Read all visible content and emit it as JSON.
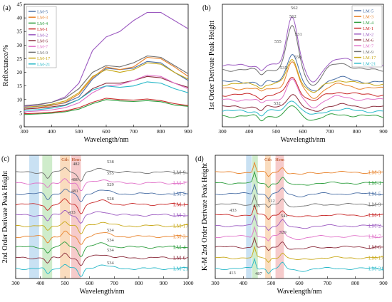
{
  "chart_data": [
    {
      "type": "line",
      "panel": "(a)",
      "xlabel": "Wavelength/nm",
      "ylabel": "Reflectance/%",
      "xlim": [
        300,
        900
      ],
      "ylim": [
        0,
        45
      ],
      "xticks": [
        300,
        400,
        500,
        600,
        700,
        800,
        900
      ],
      "yticks": [
        0,
        5,
        10,
        15,
        20,
        25,
        30,
        35,
        40,
        45
      ],
      "legend_position": "top-left",
      "grid": false,
      "x": [
        300,
        350,
        400,
        450,
        500,
        550,
        600,
        650,
        700,
        750,
        800,
        850,
        900
      ],
      "series": [
        {
          "name": "LM-5",
          "color": "#4a6fa5",
          "values": [
            7.0,
            7.5,
            8.0,
            8.8,
            11.0,
            17.5,
            21.5,
            21.0,
            21.5,
            24.0,
            23.5,
            20.0,
            17.0
          ]
        },
        {
          "name": "LM-3",
          "color": "#e8822a",
          "values": [
            6.5,
            7.0,
            7.8,
            9.0,
            12.0,
            18.0,
            22.0,
            21.0,
            22.0,
            25.5,
            25.0,
            22.0,
            18.5
          ]
        },
        {
          "name": "LM-4",
          "color": "#2e9e3e",
          "values": [
            4.5,
            4.7,
            5.0,
            5.5,
            6.5,
            8.5,
            10.0,
            9.5,
            9.3,
            9.6,
            9.2,
            8.0,
            7.5
          ]
        },
        {
          "name": "LM-1",
          "color": "#c82828",
          "values": [
            4.8,
            5.0,
            5.3,
            5.8,
            7.0,
            9.0,
            10.5,
            10.0,
            9.8,
            10.2,
            9.6,
            8.5,
            7.8
          ]
        },
        {
          "name": "LM-2",
          "color": "#9b59c0",
          "values": [
            7.5,
            8.0,
            9.0,
            11.0,
            16.0,
            28.0,
            33.0,
            35.0,
            39.0,
            42.0,
            42.0,
            39.0,
            36.0
          ]
        },
        {
          "name": "LM-6",
          "color": "#8b2c3c",
          "values": [
            6.5,
            6.8,
            7.3,
            8.0,
            10.0,
            14.0,
            16.0,
            16.0,
            17.0,
            18.5,
            18.0,
            16.0,
            14.5
          ]
        },
        {
          "name": "LM-7",
          "color": "#e070c8",
          "values": [
            5.5,
            5.8,
            6.2,
            7.0,
            8.8,
            12.5,
            15.0,
            15.5,
            17.0,
            19.0,
            18.5,
            16.0,
            14.0
          ]
        },
        {
          "name": "LM-9",
          "color": "#707070",
          "values": [
            7.8,
            8.2,
            9.0,
            10.5,
            14.0,
            20.0,
            22.5,
            22.0,
            23.5,
            26.0,
            25.5,
            22.5,
            19.5
          ]
        },
        {
          "name": "LM-17",
          "color": "#c8a818",
          "values": [
            7.2,
            7.6,
            8.3,
            9.5,
            12.5,
            18.5,
            21.0,
            20.0,
            21.0,
            23.5,
            23.0,
            20.0,
            17.5
          ]
        },
        {
          "name": "LM-21",
          "color": "#28b8c8",
          "values": [
            6.0,
            6.3,
            6.8,
            7.8,
            10.0,
            13.5,
            15.0,
            14.5,
            15.0,
            16.5,
            16.0,
            14.0,
            12.5
          ]
        }
      ]
    },
    {
      "type": "line",
      "panel": "(b)",
      "xlabel": "Wavelength/nm",
      "ylabel": "1st Order Derivate Peak Height",
      "xlim": [
        300,
        900
      ],
      "xticks": [
        300,
        400,
        500,
        600,
        700,
        800,
        900
      ],
      "legend_position": "top-right",
      "peak_labels": [
        "562",
        "562",
        "555",
        "558",
        "531",
        "535",
        "532"
      ],
      "series_order": [
        "LM-5",
        "LM-3",
        "LM-4",
        "LM-1",
        "LM-2",
        "LM-6",
        "LM-7",
        "LM-9",
        "LM-17",
        "LM-21"
      ]
    },
    {
      "type": "line",
      "panel": "(c)",
      "xlabel": "Wavelength/nm",
      "ylabel": "2nd Order Derivate Peak Height",
      "xlim": [
        300,
        1000
      ],
      "xticks": [
        300,
        400,
        500,
        600,
        700,
        800,
        900,
        1000
      ],
      "bands": [
        {
          "label": "",
          "from": 355,
          "to": 395,
          "color": "#9cc8ea"
        },
        {
          "label": "",
          "from": 408,
          "to": 448,
          "color": "#a8dca0"
        },
        {
          "label": "Gth",
          "from": 480,
          "to": 520,
          "color": "#f6c088"
        },
        {
          "label": "Hem",
          "from": 525,
          "to": 565,
          "color": "#eea0a0"
        }
      ],
      "series_labels": [
        "LM-9",
        "LM-7",
        "LM-5",
        "LM-1",
        "LM-2",
        "LM-17",
        "LM-3",
        "LM-4",
        "LM-6",
        "LM-21"
      ],
      "peak_labels": [
        "482",
        "538",
        "555",
        "529",
        "486",
        "481",
        "528",
        "433",
        "534",
        "534",
        "534",
        "534"
      ]
    },
    {
      "type": "line",
      "panel": "(d)",
      "xlabel": "Wavelength/nm",
      "ylabel": "K-M 2nd Order Derivate Peak Height",
      "xlim": [
        300,
        900
      ],
      "xticks": [
        300,
        400,
        500,
        600,
        700,
        800,
        900
      ],
      "bands": [
        {
          "label": "",
          "from": 410,
          "to": 430,
          "color": "#9cc8ea"
        },
        {
          "label": "",
          "from": 432,
          "to": 452,
          "color": "#a8dca0"
        },
        {
          "label": "Gth",
          "from": 478,
          "to": 498,
          "color": "#f6c088"
        },
        {
          "label": "Hem",
          "from": 515,
          "to": 545,
          "color": "#eea0a0"
        }
      ],
      "series_labels": [
        "LM-3",
        "LM-4",
        "LM-5",
        "LM-9",
        "LM-1",
        "LM-2",
        "LM-7",
        "LM-6",
        "LM-17",
        "LM-21"
      ],
      "peak_labels": [
        "433",
        "435",
        "512",
        "541",
        "529",
        "413",
        "487"
      ]
    }
  ]
}
